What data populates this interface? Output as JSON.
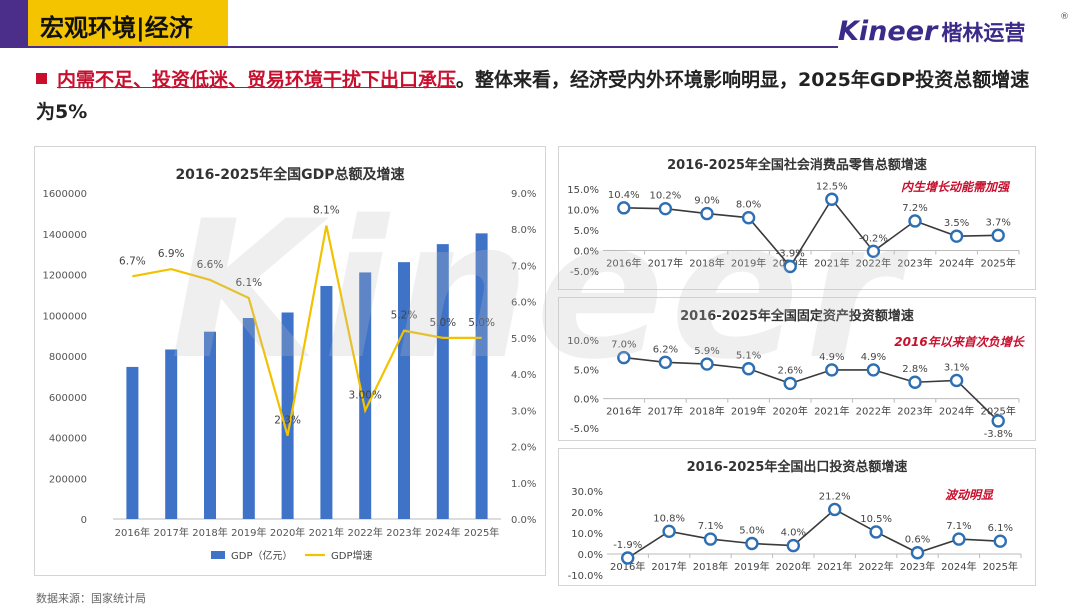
{
  "header": {
    "title": "宏观环境|经济",
    "brand_en": "Kineer",
    "brand_cn": "楷林运营",
    "reg": "®"
  },
  "headline": {
    "emphasis": "内需不足、投资低迷、贸易环境干扰下出口承压",
    "rest": "。整体来看，经济受内外环境影响明显，2025年GDP投资总额增速为5%"
  },
  "watermark": "Kineer",
  "source": "数据来源：国家统计局",
  "colors": {
    "purple": "#4b2e8a",
    "yellow": "#f5c400",
    "bar": "#3e73c8",
    "line": "#f2c200",
    "marker": "#2d6fb2",
    "red": "#c8102e"
  },
  "chart_data": [
    {
      "type": "bar",
      "title": "2016-2025年全国GDP总额及增速",
      "categories": [
        "2016年",
        "2017年",
        "2018年",
        "2019年",
        "2020年",
        "2021年",
        "2022年",
        "2023年",
        "2024年",
        "2025年"
      ],
      "series": [
        {
          "name": "GDP（亿元）",
          "type": "bar",
          "axis": "left",
          "values": [
            746395,
            832036,
            919281,
            986515,
            1013567,
            1143670,
            1210207,
            1260582,
            1349084,
            1401879
          ]
        },
        {
          "name": "GDP增速",
          "type": "line",
          "axis": "right",
          "values": [
            6.7,
            6.9,
            6.6,
            6.1,
            2.3,
            8.1,
            3.0,
            5.2,
            5.0,
            5.0
          ],
          "labels": [
            "6.7%",
            "6.9%",
            "6.6%",
            "6.1%",
            "2.3%",
            "8.1%",
            "3.00%",
            "5.2%",
            "5.0%",
            "5.0%"
          ]
        }
      ],
      "ylim_left": [
        0,
        1600000
      ],
      "yticks_left": [
        "0",
        "200000",
        "400000",
        "600000",
        "800000",
        "1000000",
        "1200000",
        "1400000",
        "1600000"
      ],
      "ylim_right": [
        0,
        9
      ],
      "yticks_right": [
        "0.0%",
        "1.0%",
        "2.0%",
        "3.0%",
        "4.0%",
        "5.0%",
        "6.0%",
        "7.0%",
        "8.0%",
        "9.0%"
      ]
    },
    {
      "type": "line",
      "title": "2016-2025年全国社会消费品零售总额增速",
      "categories": [
        "2016年",
        "2017年",
        "2018年",
        "2019年",
        "2020年",
        "2021年",
        "2022年",
        "2023年",
        "2024年",
        "2025年"
      ],
      "values": [
        10.4,
        10.2,
        9.0,
        8.0,
        -3.9,
        12.5,
        -0.2,
        7.2,
        3.5,
        3.7
      ],
      "labels": [
        "10.4%",
        "10.2%",
        "9.0%",
        "8.0%",
        "-3.9%",
        "12.5%",
        "-0.2%",
        "7.2%",
        "3.5%",
        "3.7%"
      ],
      "ylim": [
        -5,
        15
      ],
      "yticks": [
        "-5.0%",
        "0.0%",
        "5.0%",
        "10.0%",
        "15.0%"
      ],
      "annotation": "内生增长动能需加强"
    },
    {
      "type": "line",
      "title": "2016-2025年全国固定资产投资额增速",
      "categories": [
        "2016年",
        "2017年",
        "2018年",
        "2019年",
        "2020年",
        "2021年",
        "2022年",
        "2023年",
        "2024年",
        "2025年"
      ],
      "values": [
        7.0,
        6.2,
        5.9,
        5.1,
        2.6,
        4.9,
        4.9,
        2.8,
        3.1,
        -3.8
      ],
      "labels": [
        "7.0%",
        "6.2%",
        "5.9%",
        "5.1%",
        "2.6%",
        "4.9%",
        "4.9%",
        "2.8%",
        "3.1%",
        "-3.8%"
      ],
      "ylim": [
        -5,
        10
      ],
      "yticks": [
        "-5.0%",
        "0.0%",
        "5.0%",
        "10.0%"
      ],
      "annotation": "2016年以来首次负增长"
    },
    {
      "type": "line",
      "title": "2016-2025年全国出口投资总额增速",
      "categories": [
        "2016年",
        "2017年",
        "2018年",
        "2019年",
        "2020年",
        "2021年",
        "2022年",
        "2023年",
        "2024年",
        "2025年"
      ],
      "values": [
        -1.9,
        10.8,
        7.1,
        5.0,
        4.0,
        21.2,
        10.5,
        0.6,
        7.1,
        6.1
      ],
      "labels": [
        "-1.9%",
        "10.8%",
        "7.1%",
        "5.0%",
        "4.0%",
        "21.2%",
        "10.5%",
        "0.6%",
        "7.1%",
        "6.1%"
      ],
      "ylim": [
        -10,
        30
      ],
      "yticks": [
        "-10.0%",
        "0.0%",
        "10.0%",
        "20.0%",
        "30.0%"
      ],
      "annotation": "波动明显"
    }
  ]
}
